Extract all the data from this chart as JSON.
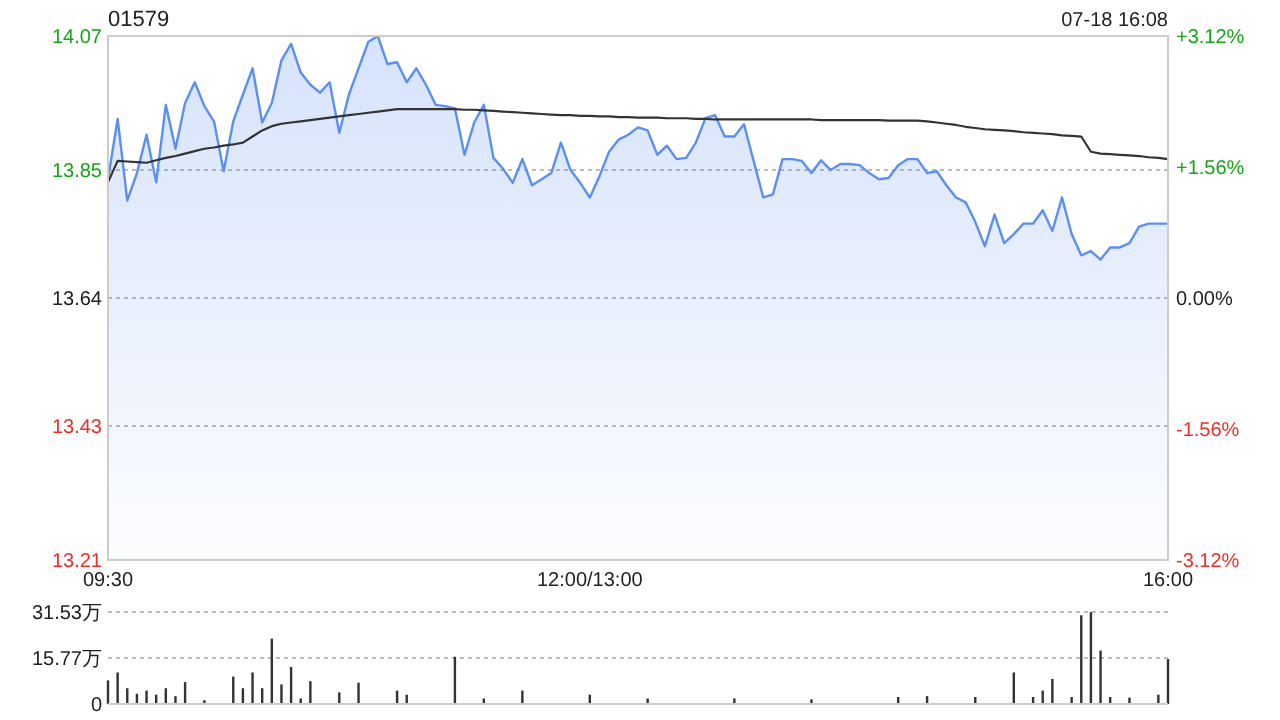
{
  "chart_data": [
    {
      "type": "line",
      "title": "01579",
      "annotations": [
        "07-18 16:08"
      ],
      "categories": [
        "09:30",
        null,
        null,
        null,
        null,
        null,
        null,
        null,
        null,
        null,
        null,
        null,
        null,
        null,
        null,
        null,
        null,
        null,
        null,
        null,
        null,
        null,
        null,
        null,
        null,
        null,
        null,
        null,
        null,
        null,
        null,
        null,
        null,
        null,
        null,
        null,
        null,
        null,
        null,
        null,
        null,
        null,
        null,
        null,
        null,
        null,
        null,
        null,
        null,
        null,
        "12:00/13:00",
        null,
        null,
        null,
        null,
        null,
        null,
        null,
        null,
        null,
        null,
        null,
        null,
        null,
        null,
        null,
        null,
        null,
        null,
        null,
        null,
        null,
        null,
        null,
        null,
        null,
        null,
        null,
        null,
        null,
        null,
        null,
        null,
        null,
        null,
        null,
        null,
        null,
        null,
        null,
        null,
        null,
        null,
        null,
        null,
        null,
        null,
        null,
        null,
        null,
        null,
        null,
        null,
        null,
        null,
        null,
        null,
        null,
        null,
        null,
        "16:00"
      ],
      "ylim": [
        13.21,
        14.07
      ],
      "yticks": [
        14.07,
        13.85,
        13.64,
        13.43,
        13.21
      ],
      "y2lim": [
        -3.12,
        3.12
      ],
      "y2ticks": [
        {
          "value": 3.12,
          "label": "+3.12%"
        },
        {
          "value": 1.56,
          "label": "+1.56%"
        },
        {
          "value": 0,
          "label": "0.00%"
        },
        {
          "value": -1.56,
          "label": "-1.56%"
        },
        {
          "value": -3.12,
          "label": "-3.12%"
        }
      ],
      "grid": "y",
      "series": [
        {
          "type": "area",
          "color": "#5b8ff0",
          "values": [
            13.835,
            13.934,
            13.8,
            13.845,
            13.908,
            13.83,
            13.957,
            13.885,
            13.96,
            13.994,
            13.955,
            13.93,
            13.848,
            13.93,
            13.974,
            14.017,
            13.928,
            13.96,
            14.03,
            14.057,
            14.01,
            13.99,
            13.977,
            13.994,
            13.911,
            13.974,
            14.017,
            14.06,
            14.07,
            14.024,
            14.027,
            13.994,
            14.017,
            13.99,
            13.957,
            13.955,
            13.951,
            13.875,
            13.928,
            13.957,
            13.87,
            13.852,
            13.829,
            13.868,
            13.825,
            13.835,
            13.845,
            13.895,
            13.85,
            13.829,
            13.805,
            13.84,
            13.88,
            13.9,
            13.908,
            13.92,
            13.915,
            13.875,
            13.89,
            13.868,
            13.87,
            13.895,
            13.935,
            13.94,
            13.905,
            13.905,
            13.925,
            13.865,
            13.805,
            13.81,
            13.868,
            13.868,
            13.865,
            13.845,
            13.866,
            13.85,
            13.86,
            13.86,
            13.858,
            13.845,
            13.835,
            13.837,
            13.858,
            13.868,
            13.868,
            13.845,
            13.848,
            13.825,
            13.805,
            13.797,
            13.765,
            13.725,
            13.777,
            13.73,
            13.745,
            13.762,
            13.762,
            13.784,
            13.75,
            13.805,
            13.745,
            13.71,
            13.717,
            13.703,
            13.723,
            13.723,
            13.73,
            13.757,
            13.762,
            13.762,
            13.762
          ]
        },
        {
          "type": "line",
          "color": "#333333",
          "values": [
            13.83,
            13.865,
            13.864,
            13.863,
            13.862,
            13.866,
            13.87,
            13.873,
            13.877,
            13.881,
            13.885,
            13.887,
            13.89,
            13.892,
            13.895,
            13.905,
            13.915,
            13.922,
            13.926,
            13.928,
            13.93,
            13.932,
            13.934,
            13.936,
            13.938,
            13.94,
            13.942,
            13.944,
            13.946,
            13.948,
            13.95,
            13.95,
            13.95,
            13.95,
            13.95,
            13.95,
            13.95,
            13.949,
            13.949,
            13.948,
            13.947,
            13.946,
            13.945,
            13.944,
            13.943,
            13.942,
            13.941,
            13.94,
            13.94,
            13.939,
            13.939,
            13.938,
            13.938,
            13.937,
            13.937,
            13.936,
            13.936,
            13.936,
            13.935,
            13.935,
            13.935,
            13.934,
            13.934,
            13.933,
            13.933,
            13.933,
            13.933,
            13.933,
            13.933,
            13.933,
            13.933,
            13.933,
            13.933,
            13.933,
            13.932,
            13.932,
            13.932,
            13.932,
            13.932,
            13.932,
            13.932,
            13.931,
            13.931,
            13.931,
            13.931,
            13.93,
            13.928,
            13.926,
            13.924,
            13.921,
            13.919,
            13.917,
            13.916,
            13.915,
            13.914,
            13.912,
            13.911,
            13.91,
            13.909,
            13.907,
            13.906,
            13.905,
            13.88,
            13.877,
            13.876,
            13.875,
            13.874,
            13.873,
            13.871,
            13.87,
            13.868
          ]
        }
      ]
    },
    {
      "type": "bar",
      "tick_labels": "y",
      "categories": [
        null,
        null,
        null,
        null,
        null,
        null,
        null,
        null,
        null,
        null,
        null,
        null,
        null,
        null,
        null,
        null,
        null,
        null,
        null,
        null,
        null,
        null,
        null,
        null,
        null,
        null,
        null,
        null,
        null,
        null,
        null,
        null,
        null,
        null,
        null,
        null,
        null,
        null,
        null,
        null,
        null,
        null,
        null,
        null,
        null,
        null,
        null,
        null,
        null,
        null,
        null,
        null,
        null,
        null,
        null,
        null,
        null,
        null,
        null,
        null,
        null,
        null,
        null,
        null,
        null,
        null,
        null,
        null,
        null,
        null,
        null,
        null,
        null,
        null,
        null,
        null,
        null,
        null,
        null,
        null,
        null,
        null,
        null,
        null,
        null,
        null,
        null,
        null,
        null,
        null,
        null,
        null,
        null,
        null,
        null,
        null,
        null,
        null,
        null,
        null,
        null,
        null,
        null,
        null,
        null,
        null,
        null,
        null,
        null,
        null,
        null
      ],
      "ylim": [
        0,
        31.53
      ],
      "yticks": [
        {
          "value": 31.53,
          "label": "31.53万"
        },
        {
          "value": 15.77,
          "label": "15.77万"
        },
        0
      ],
      "grid": "y",
      "color": "#333333",
      "values": [
        8.1,
        10.8,
        5.4,
        3.5,
        4.6,
        3.2,
        5.4,
        2.7,
        7.5,
        null,
        1.3,
        null,
        null,
        9.4,
        5.4,
        10.8,
        5.4,
        22.4,
        6.7,
        12.7,
        1.9,
        7.8,
        null,
        null,
        4,
        null,
        7.3,
        null,
        null,
        null,
        4.6,
        3.2,
        null,
        null,
        null,
        null,
        16.2,
        null,
        null,
        1.9,
        null,
        null,
        null,
        4.6,
        null,
        null,
        null,
        null,
        null,
        null,
        3.2,
        null,
        null,
        null,
        null,
        null,
        1.9,
        null,
        null,
        null,
        null,
        null,
        null,
        null,
        null,
        1.9,
        null,
        null,
        null,
        null,
        null,
        null,
        null,
        1.6,
        null,
        null,
        null,
        null,
        null,
        null,
        null,
        null,
        2.4,
        null,
        null,
        2.7,
        null,
        null,
        null,
        null,
        2.4,
        null,
        null,
        null,
        10.8,
        null,
        2.4,
        4.6,
        8.6,
        null,
        2.4,
        30.4,
        31.5,
        18.3,
        2.4,
        null,
        2.2,
        null,
        null,
        3.2,
        15.4
      ]
    }
  ]
}
